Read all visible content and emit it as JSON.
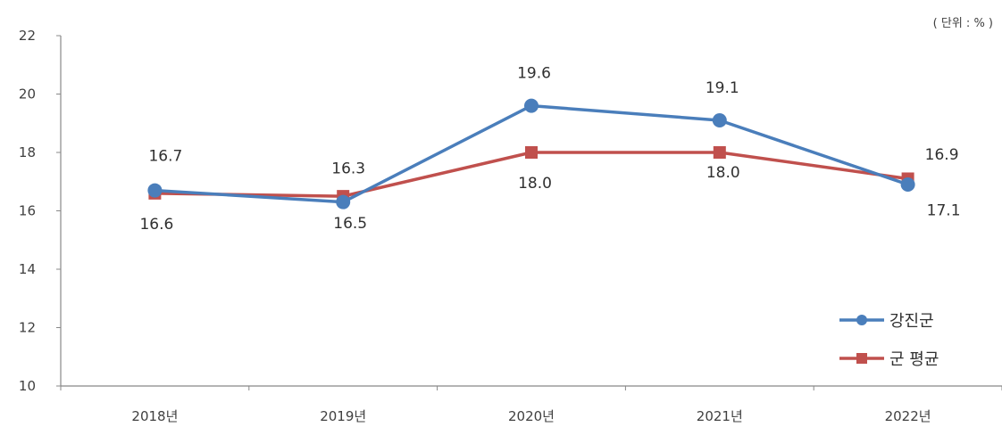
{
  "chart_data": {
    "type": "line",
    "title": "",
    "xlabel": "",
    "ylabel": "",
    "unit_note": "( 단위 : % )",
    "categories": [
      "2018년",
      "2019년",
      "2020년",
      "2021년",
      "2022년"
    ],
    "ylim": [
      10,
      22
    ],
    "yticks": [
      "10",
      "12",
      "14",
      "16",
      "18",
      "20",
      "22"
    ],
    "grid": false,
    "legend_position": "bottom-right",
    "series": [
      {
        "name": "강진군",
        "values": [
          16.7,
          16.3,
          19.6,
          19.1,
          16.9
        ],
        "labels": [
          "16.7",
          "16.3",
          "19.6",
          "19.1",
          "16.9"
        ],
        "color": "#4A7EBB",
        "marker": "circle"
      },
      {
        "name": "군 평균",
        "values": [
          16.6,
          16.5,
          18.0,
          18.0,
          17.1
        ],
        "labels": [
          "16.6",
          "16.5",
          "18.0",
          "18.0",
          "17.1"
        ],
        "color": "#C0504D",
        "marker": "square"
      }
    ]
  }
}
